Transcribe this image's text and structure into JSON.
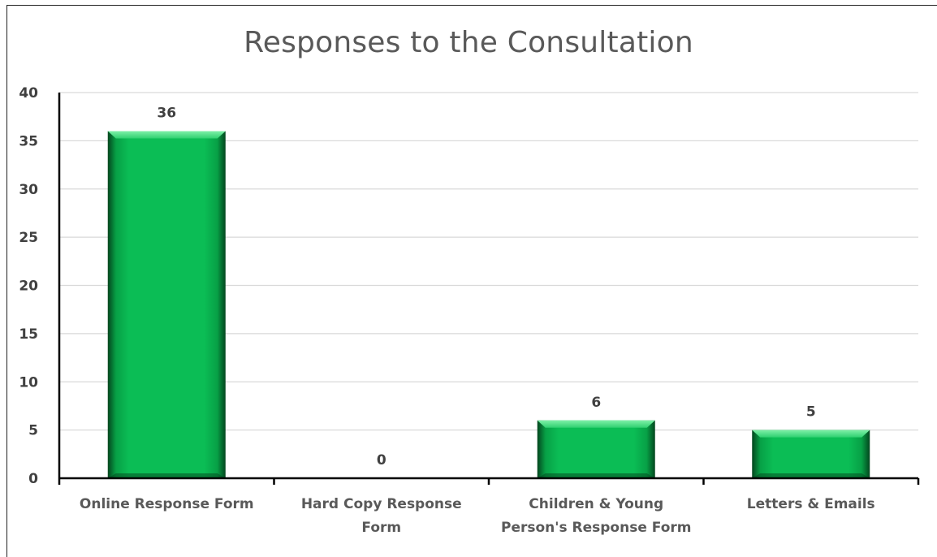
{
  "chart_data": {
    "type": "bar",
    "title": "Responses to the Consultation",
    "categories": [
      [
        "Online Response Form"
      ],
      [
        "Hard Copy Response",
        "Form"
      ],
      [
        "Children & Young",
        "Person's Response Form"
      ],
      [
        "Letters & Emails"
      ]
    ],
    "values": [
      36,
      0,
      6,
      5
    ],
    "data_labels": [
      "36",
      "0",
      "6",
      "5"
    ],
    "ylim": [
      0,
      40
    ],
    "yticks": [
      0,
      5,
      10,
      15,
      20,
      25,
      30,
      35,
      40
    ],
    "xlabel": "",
    "ylabel": "",
    "grid": true,
    "legend": "none",
    "colors": {
      "bar": "#0bbd55",
      "bar_light": "#5ee28e",
      "bar_dark": "#045c28",
      "gridline": "#d9d9d9",
      "axis": "#000000"
    }
  }
}
